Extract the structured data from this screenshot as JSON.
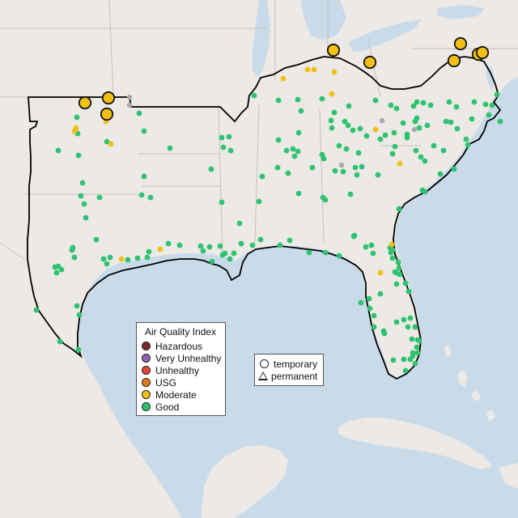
{
  "colors": {
    "water": "#c9dbe8",
    "land": "#ece9e6",
    "state_line": "#c4c0bc",
    "highlight_border": "#000000",
    "Hazardous": "#7a2a2a",
    "Very Unhealthy": "#9560b3",
    "Unhealthy": "#e2473a",
    "USG": "#e07a1f",
    "Moderate": "#f2c012",
    "Good": "#2fc36f",
    "Unknown": "#a7abae"
  },
  "aqi_legend": {
    "title": "Air Quality Index",
    "items": [
      {
        "label": "Hazardous",
        "color": "#7a2a2a"
      },
      {
        "label": "Very Unhealthy",
        "color": "#9560b3"
      },
      {
        "label": "Unhealthy",
        "color": "#e2473a"
      },
      {
        "label": "USG",
        "color": "#e07a1f"
      },
      {
        "label": "Moderate",
        "color": "#f2c012"
      },
      {
        "label": "Good",
        "color": "#2fc36f"
      }
    ]
  },
  "type_legend": {
    "temporary_label": "temporary",
    "permanent_label": "permanent"
  }
}
